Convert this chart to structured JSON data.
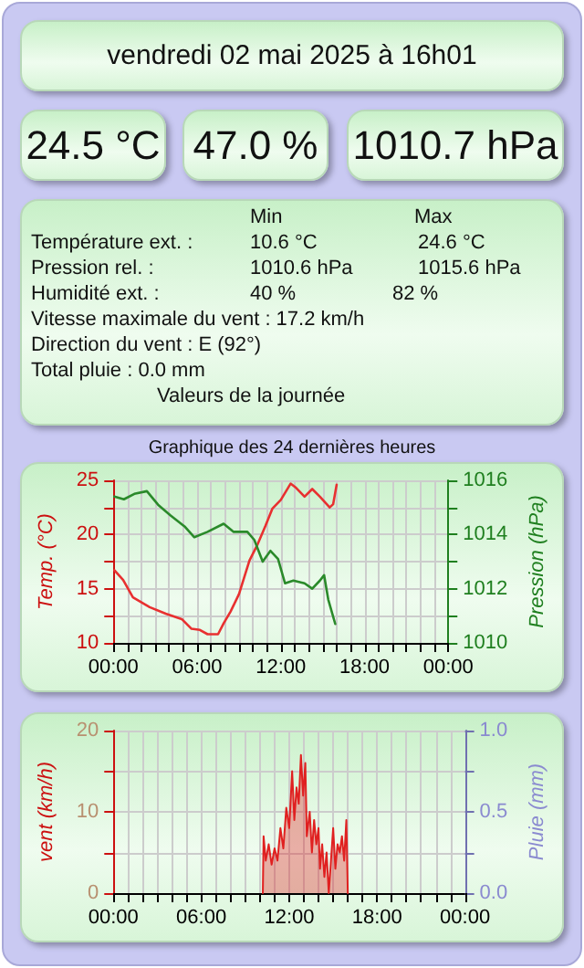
{
  "chart_data": [
    {
      "type": "other",
      "title": "vendredi 02 mai 2025 à 16h01",
      "annotations": [
        "24.5 °C",
        "47.0 %",
        "1010.7 hPa",
        "Min",
        "Max",
        "Température ext. :",
        "10.6 °C",
        "24.6 °C",
        "Pression rel. :",
        "1010.6 hPa",
        "1015.6 hPa",
        "Humidité ext. :",
        "40 %",
        "82 %",
        "Vitesse maximale du vent : 17.2 km/h",
        "Direction du vent : E (92°)",
        "Total pluie : 0.0 mm",
        "Valeurs de la journée"
      ]
    },
    {
      "type": "line",
      "title": "Graphique des 24 dernières heures",
      "ylabel": "Temp. (°C)",
      "y2label": "Pression (hPa)",
      "grid": true,
      "marker": "none",
      "line_style": "solid",
      "xlim": [
        0,
        24
      ],
      "xticks": [
        {
          "value": 0,
          "label": "00:00"
        },
        {
          "value": 1,
          "label": null
        },
        {
          "value": 2,
          "label": null
        },
        {
          "value": 3,
          "label": null
        },
        {
          "value": 4,
          "label": null
        },
        {
          "value": 5,
          "label": null
        },
        {
          "value": 6,
          "label": "06:00"
        },
        {
          "value": 7,
          "label": null
        },
        {
          "value": 8,
          "label": null
        },
        {
          "value": 9,
          "label": null
        },
        {
          "value": 10,
          "label": null
        },
        {
          "value": 11,
          "label": null
        },
        {
          "value": 12,
          "label": "12:00"
        },
        {
          "value": 13,
          "label": null
        },
        {
          "value": 14,
          "label": null
        },
        {
          "value": 15,
          "label": null
        },
        {
          "value": 16,
          "label": null
        },
        {
          "value": 17,
          "label": null
        },
        {
          "value": 18,
          "label": "18:00"
        },
        {
          "value": 19,
          "label": null
        },
        {
          "value": 20,
          "label": null
        },
        {
          "value": 21,
          "label": null
        },
        {
          "value": 22,
          "label": null
        },
        {
          "value": 23,
          "label": null
        },
        {
          "value": 24,
          "label": "00:00"
        }
      ],
      "ylim": [
        10,
        25
      ],
      "yticks": [
        10,
        {
          "value": 12.5,
          "label": null
        },
        15,
        {
          "value": 17.5,
          "label": null
        },
        20,
        {
          "value": 22.5,
          "label": null
        },
        25
      ],
      "y2lim": [
        1010,
        1016
      ],
      "y2ticks": [
        1010,
        {
          "value": 1011,
          "label": null
        },
        1012,
        {
          "value": 1013,
          "label": null
        },
        1014,
        {
          "value": 1015,
          "label": null
        },
        1016
      ],
      "series": [
        {
          "color": "#e83030",
          "x": [
            0.07,
            0.7,
            1.4,
            2.6,
            3.75,
            4.9,
            5.6,
            6.2,
            6.75,
            7.5,
            7.9,
            8.4,
            9.0,
            9.75,
            10.3,
            10.9,
            11.4,
            12,
            12.7,
            13.1,
            13.7,
            14.25,
            14.8,
            15.5,
            15.75,
            16.0
          ],
          "values": [
            16.7,
            15.8,
            14.2,
            13.3,
            12.7,
            12.2,
            11.3,
            11.2,
            10.8,
            10.8,
            11.8,
            12.9,
            14.5,
            17.6,
            19.0,
            20.8,
            22.4,
            23.2,
            24.7,
            24.3,
            23.5,
            24.2,
            23.5,
            22.5,
            22.8,
            24.6
          ]
        },
        {
          "color": "#2a8a2a",
          "axis": "y2",
          "x": [
            0.07,
            0.75,
            1.5,
            2.4,
            3.2,
            4.1,
            5.1,
            5.8,
            6.75,
            7.9,
            8.6,
            9.6,
            10.1,
            10.7,
            11.25,
            11.8,
            12.3,
            12.9,
            13.7,
            14.25,
            14.8,
            15.1,
            15.4,
            15.9
          ],
          "values": [
            1015.4,
            1015.3,
            1015.5,
            1015.6,
            1015.1,
            1014.7,
            1014.3,
            1013.9,
            1014.1,
            1014.4,
            1014.1,
            1014.1,
            1013.8,
            1013,
            1013.4,
            1013.1,
            1012.2,
            1012.3,
            1012.2,
            1012,
            1012.3,
            1012.5,
            1011.6,
            1010.7
          ]
        }
      ]
    },
    {
      "type": "area",
      "ylabel": "vent (km/h)",
      "y2label": "Pluie (mm)",
      "grid": true,
      "marker": "none",
      "xlim": [
        0,
        24
      ],
      "xticks": [
        {
          "value": 0,
          "label": "00:00"
        },
        {
          "value": 1,
          "label": null
        },
        {
          "value": 2,
          "label": null
        },
        {
          "value": 3,
          "label": null
        },
        {
          "value": 4,
          "label": null
        },
        {
          "value": 5,
          "label": null
        },
        {
          "value": 6,
          "label": "06:00"
        },
        {
          "value": 7,
          "label": null
        },
        {
          "value": 8,
          "label": null
        },
        {
          "value": 9,
          "label": null
        },
        {
          "value": 10,
          "label": null
        },
        {
          "value": 11,
          "label": null
        },
        {
          "value": 12,
          "label": "12:00"
        },
        {
          "value": 13,
          "label": null
        },
        {
          "value": 14,
          "label": null
        },
        {
          "value": 15,
          "label": null
        },
        {
          "value": 16,
          "label": null
        },
        {
          "value": 17,
          "label": null
        },
        {
          "value": 18,
          "label": "18:00"
        },
        {
          "value": 19,
          "label": null
        },
        {
          "value": 20,
          "label": null
        },
        {
          "value": 21,
          "label": null
        },
        {
          "value": 22,
          "label": null
        },
        {
          "value": 23,
          "label": null
        },
        {
          "value": 24,
          "label": "00:00"
        }
      ],
      "ylim": [
        0,
        20
      ],
      "yticks": [
        0,
        {
          "value": 5,
          "label": null
        },
        10,
        {
          "value": 15,
          "label": null
        },
        20
      ],
      "y2lim": [
        0,
        1
      ],
      "y2ticks": [
        {
          "value": 0,
          "label": "0.0"
        },
        {
          "value": 0.25,
          "label": null
        },
        {
          "value": 0.5,
          "label": "0.5"
        },
        {
          "value": 0.75,
          "label": null
        },
        {
          "value": 1,
          "label": "1.0"
        }
      ],
      "series": [
        {
          "color": "#e02020",
          "x": [
            10.2,
            10.25,
            10.4,
            10.6,
            10.8,
            11.0,
            11.2,
            11.4,
            11.6,
            11.8,
            12.0,
            12.2,
            12.35,
            12.5,
            12.65,
            12.8,
            12.95,
            13.1,
            13.2,
            13.4,
            13.55,
            13.7,
            13.85,
            14.0,
            14.1,
            14.25,
            14.4,
            14.55,
            14.7,
            14.85,
            15.0,
            15.15,
            15.3,
            15.45,
            15.6,
            15.75,
            15.9,
            16.0
          ],
          "values": [
            0,
            7,
            4,
            6,
            3.5,
            5.5,
            4,
            8,
            5.5,
            10.5,
            8,
            15,
            9,
            13,
            11,
            17,
            12,
            16,
            7,
            10,
            5,
            9,
            6,
            8,
            3,
            6,
            2,
            5,
            0,
            4,
            8,
            3,
            6,
            5,
            7,
            4,
            9,
            0
          ]
        }
      ]
    }
  ]
}
